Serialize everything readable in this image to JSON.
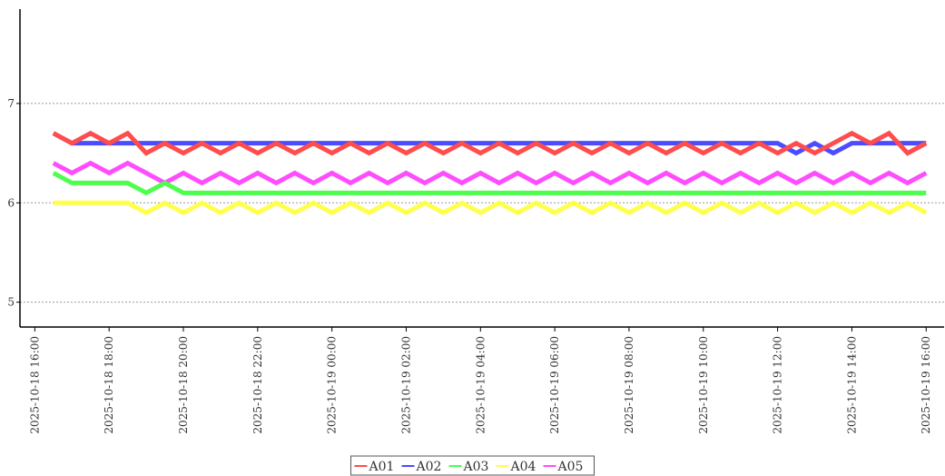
{
  "chart_data": {
    "type": "line",
    "x": [
      "2025-10-18 16:30",
      "2025-10-18 17:00",
      "2025-10-18 17:30",
      "2025-10-18 18:00",
      "2025-10-18 18:30",
      "2025-10-18 19:00",
      "2025-10-18 19:30",
      "2025-10-18 20:00",
      "2025-10-18 20:30",
      "2025-10-18 21:00",
      "2025-10-18 21:30",
      "2025-10-18 22:00",
      "2025-10-18 22:30",
      "2025-10-18 23:00",
      "2025-10-18 23:30",
      "2025-10-19 00:00",
      "2025-10-19 00:30",
      "2025-10-19 01:00",
      "2025-10-19 01:30",
      "2025-10-19 02:00",
      "2025-10-19 02:30",
      "2025-10-19 03:00",
      "2025-10-19 03:30",
      "2025-10-19 04:00",
      "2025-10-19 04:30",
      "2025-10-19 05:00",
      "2025-10-19 05:30",
      "2025-10-19 06:00",
      "2025-10-19 06:30",
      "2025-10-19 07:00",
      "2025-10-19 07:30",
      "2025-10-19 08:00",
      "2025-10-19 08:30",
      "2025-10-19 09:00",
      "2025-10-19 09:30",
      "2025-10-19 10:00",
      "2025-10-19 10:30",
      "2025-10-19 11:00",
      "2025-10-19 11:30",
      "2025-10-19 12:00",
      "2025-10-19 12:30",
      "2025-10-19 13:00",
      "2025-10-19 13:30",
      "2025-10-19 14:00",
      "2025-10-19 14:30",
      "2025-10-19 15:00",
      "2025-10-19 15:30",
      "2025-10-19 16:00"
    ],
    "series": [
      {
        "name": "A01",
        "color": "#ff4c4c",
        "values": [
          6.7,
          6.6,
          6.7,
          6.6,
          6.7,
          6.5,
          6.6,
          6.5,
          6.6,
          6.5,
          6.6,
          6.5,
          6.6,
          6.5,
          6.6,
          6.5,
          6.6,
          6.5,
          6.6,
          6.5,
          6.6,
          6.5,
          6.6,
          6.5,
          6.6,
          6.5,
          6.6,
          6.5,
          6.6,
          6.5,
          6.6,
          6.5,
          6.6,
          6.5,
          6.6,
          6.5,
          6.6,
          6.5,
          6.6,
          6.5,
          6.6,
          6.5,
          6.6,
          6.7,
          6.6,
          6.7,
          6.5,
          6.6
        ]
      },
      {
        "name": "A02",
        "color": "#4c4cff",
        "values": [
          6.7,
          6.6,
          6.6,
          6.6,
          6.6,
          6.6,
          6.6,
          6.6,
          6.6,
          6.6,
          6.6,
          6.6,
          6.6,
          6.6,
          6.6,
          6.6,
          6.6,
          6.6,
          6.6,
          6.6,
          6.6,
          6.6,
          6.6,
          6.6,
          6.6,
          6.6,
          6.6,
          6.6,
          6.6,
          6.6,
          6.6,
          6.6,
          6.6,
          6.6,
          6.6,
          6.6,
          6.6,
          6.6,
          6.6,
          6.6,
          6.5,
          6.6,
          6.5,
          6.6,
          6.6,
          6.6,
          6.6,
          6.6
        ]
      },
      {
        "name": "A03",
        "color": "#4cff4c",
        "values": [
          6.3,
          6.2,
          6.2,
          6.2,
          6.2,
          6.1,
          6.2,
          6.1,
          6.1,
          6.1,
          6.1,
          6.1,
          6.1,
          6.1,
          6.1,
          6.1,
          6.1,
          6.1,
          6.1,
          6.1,
          6.1,
          6.1,
          6.1,
          6.1,
          6.1,
          6.1,
          6.1,
          6.1,
          6.1,
          6.1,
          6.1,
          6.1,
          6.1,
          6.1,
          6.1,
          6.1,
          6.1,
          6.1,
          6.1,
          6.1,
          6.1,
          6.1,
          6.1,
          6.1,
          6.1,
          6.1,
          6.1,
          6.1
        ]
      },
      {
        "name": "A04",
        "color": "#ffff4c",
        "values": [
          6.0,
          6.0,
          6.0,
          6.0,
          6.0,
          5.9,
          6.0,
          5.9,
          6.0,
          5.9,
          6.0,
          5.9,
          6.0,
          5.9,
          6.0,
          5.9,
          6.0,
          5.9,
          6.0,
          5.9,
          6.0,
          5.9,
          6.0,
          5.9,
          6.0,
          5.9,
          6.0,
          5.9,
          6.0,
          5.9,
          6.0,
          5.9,
          6.0,
          5.9,
          6.0,
          5.9,
          6.0,
          5.9,
          6.0,
          5.9,
          6.0,
          5.9,
          6.0,
          5.9,
          6.0,
          5.9,
          6.0,
          5.9
        ]
      },
      {
        "name": "A05",
        "color": "#ff4cff",
        "values": [
          6.4,
          6.3,
          6.4,
          6.3,
          6.4,
          6.3,
          6.2,
          6.3,
          6.2,
          6.3,
          6.2,
          6.3,
          6.2,
          6.3,
          6.2,
          6.3,
          6.2,
          6.3,
          6.2,
          6.3,
          6.2,
          6.3,
          6.2,
          6.3,
          6.2,
          6.3,
          6.2,
          6.3,
          6.2,
          6.3,
          6.2,
          6.3,
          6.2,
          6.3,
          6.2,
          6.3,
          6.2,
          6.3,
          6.2,
          6.3,
          6.2,
          6.3,
          6.2,
          6.3,
          6.2,
          6.3,
          6.2,
          6.3
        ]
      }
    ],
    "xlim": [
      "2025-10-18 15:36",
      "2025-10-19 16:29"
    ],
    "xticks": [
      "2025-10-18 16:00",
      "2025-10-18 18:00",
      "2025-10-18 20:00",
      "2025-10-18 22:00",
      "2025-10-19 00:00",
      "2025-10-19 02:00",
      "2025-10-19 04:00",
      "2025-10-19 06:00",
      "2025-10-19 08:00",
      "2025-10-19 10:00",
      "2025-10-19 12:00",
      "2025-10-19 14:00",
      "2025-10-19 16:00"
    ],
    "ylim": [
      4.75,
      7.95
    ],
    "yticks": [
      5,
      6,
      7
    ],
    "grid": true,
    "legend": "bottom"
  }
}
